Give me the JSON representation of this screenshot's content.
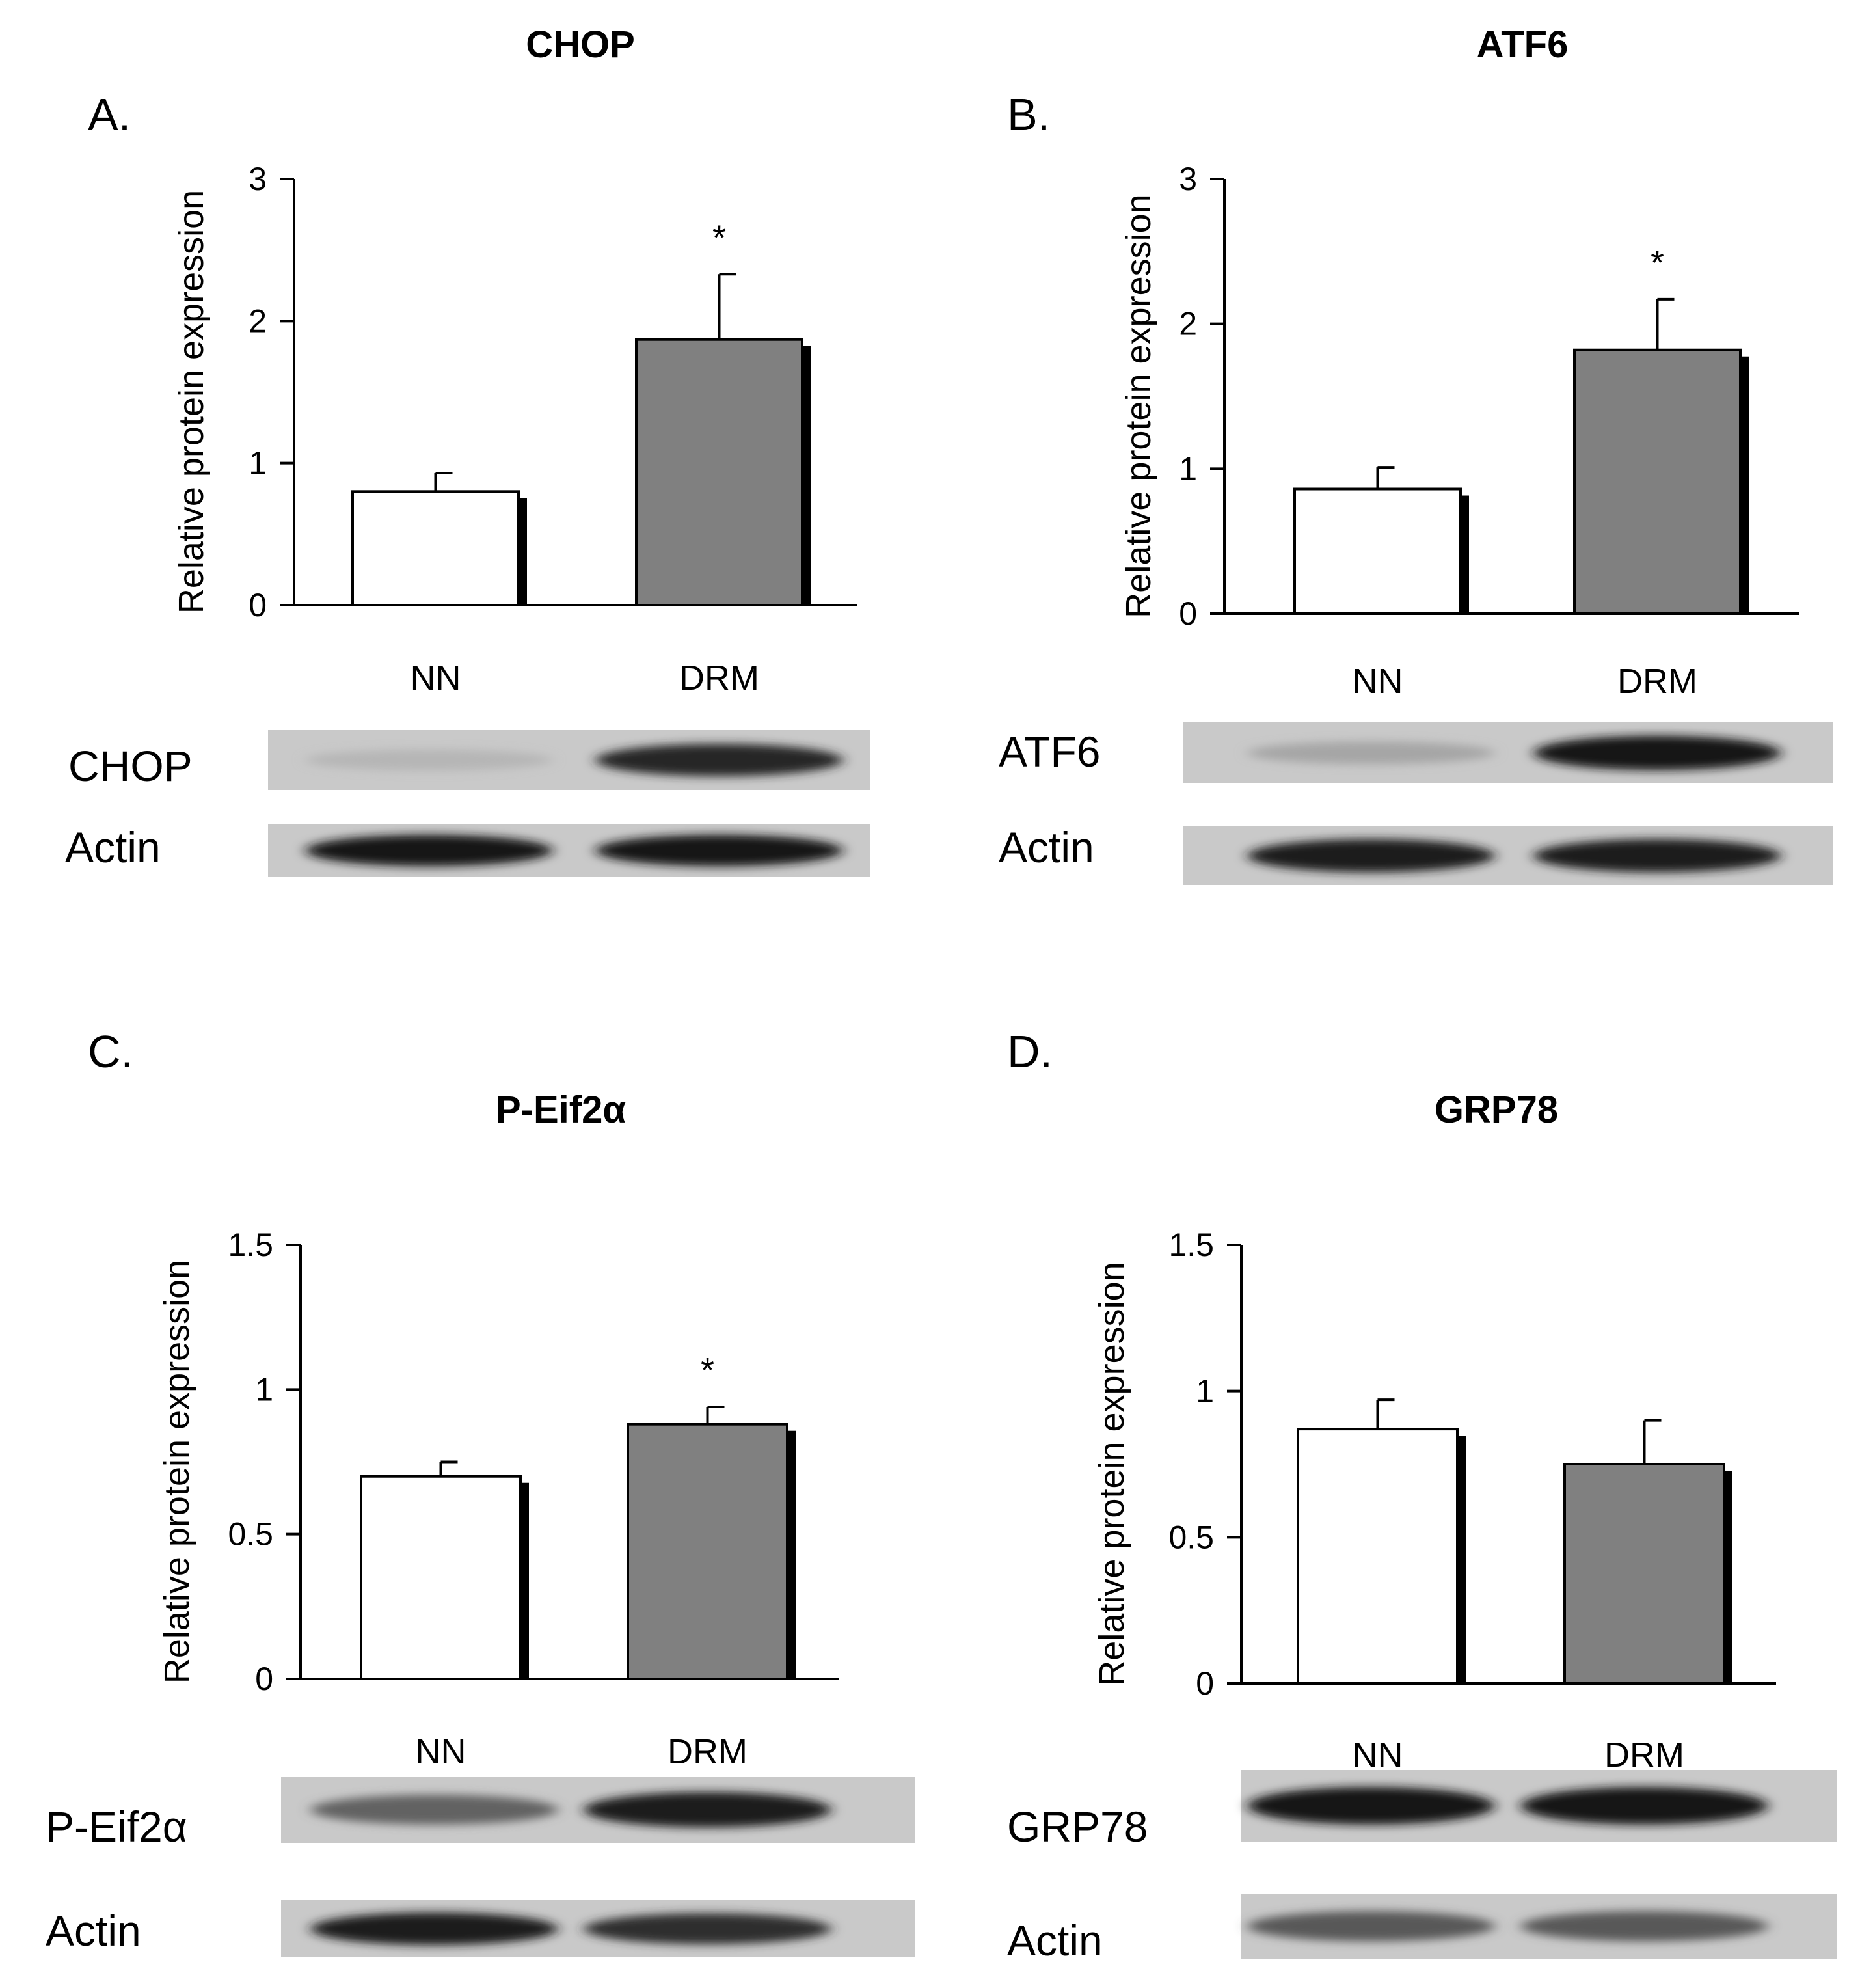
{
  "chart_data": [
    {
      "type": "bar",
      "panel": "A.",
      "title": "CHOP",
      "ylabel": "Relative protein expression",
      "xlabel": "",
      "categories": [
        "NN",
        "DRM"
      ],
      "values": [
        0.8,
        1.87
      ],
      "errors": [
        0.13,
        0.46
      ],
      "annotations": [
        "",
        "*"
      ],
      "colors": [
        "#ffffff",
        "#808080"
      ],
      "ylim": [
        0,
        3
      ],
      "yticks": [
        0,
        1,
        2,
        3
      ],
      "ytick_labels": [
        "0",
        "1",
        "2",
        "3"
      ],
      "grid": false,
      "blots": [
        {
          "label": "CHOP",
          "intensity": [
            0.12,
            0.85
          ]
        },
        {
          "label": "Actin",
          "intensity": [
            0.95,
            0.95
          ]
        }
      ]
    },
    {
      "type": "bar",
      "panel": "B.",
      "title": "ATF6",
      "ylabel": "Relative protein expression",
      "xlabel": "",
      "categories": [
        "NN",
        "DRM"
      ],
      "values": [
        0.86,
        1.82
      ],
      "errors": [
        0.15,
        0.35
      ],
      "annotations": [
        "",
        "*"
      ],
      "colors": [
        "#ffffff",
        "#808080"
      ],
      "ylim": [
        0,
        3
      ],
      "yticks": [
        0,
        1,
        2,
        3
      ],
      "ytick_labels": [
        "0",
        "1",
        "2",
        "3"
      ],
      "grid": false,
      "blots": [
        {
          "label": "ATF6",
          "intensity": [
            0.2,
            0.95
          ]
        },
        {
          "label": "Actin",
          "intensity": [
            0.92,
            0.92
          ]
        }
      ]
    },
    {
      "type": "bar",
      "panel": "C.",
      "title": "P-Eif2α",
      "ylabel": "Relative protein expression",
      "xlabel": "",
      "categories": [
        "NN",
        "DRM"
      ],
      "values": [
        0.7,
        0.88
      ],
      "errors": [
        0.05,
        0.06
      ],
      "annotations": [
        "",
        "*"
      ],
      "colors": [
        "#ffffff",
        "#808080"
      ],
      "ylim": [
        0,
        1.5
      ],
      "yticks": [
        0,
        0.5,
        1,
        1.5
      ],
      "ytick_labels": [
        "0",
        "0.5",
        "1",
        "1.5"
      ],
      "grid": false,
      "blots": [
        {
          "label": "P-Eif2α",
          "intensity": [
            0.55,
            0.9
          ]
        },
        {
          "label": "Actin",
          "intensity": [
            0.92,
            0.82
          ]
        }
      ]
    },
    {
      "type": "bar",
      "panel": "D.",
      "title": "GRP78",
      "ylabel": "Relative protein expression",
      "xlabel": "",
      "categories": [
        "NN",
        "DRM"
      ],
      "values": [
        0.87,
        0.75
      ],
      "errors": [
        0.1,
        0.15
      ],
      "annotations": [
        "",
        ""
      ],
      "colors": [
        "#ffffff",
        "#808080"
      ],
      "ylim": [
        0,
        1.5
      ],
      "yticks": [
        0,
        0.5,
        1,
        1.5
      ],
      "ytick_labels": [
        "0",
        "0.5",
        "1",
        "1.5"
      ],
      "grid": false,
      "blots": [
        {
          "label": "GRP78",
          "intensity": [
            0.95,
            0.95
          ]
        },
        {
          "label": "Actin",
          "intensity": [
            0.6,
            0.6
          ]
        }
      ]
    }
  ]
}
